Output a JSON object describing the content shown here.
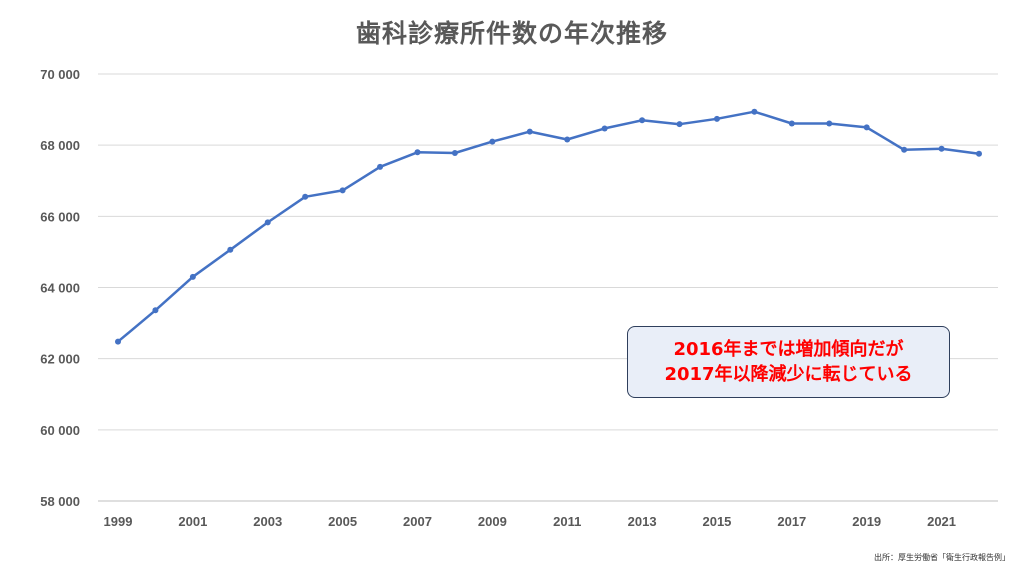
{
  "chart_data": {
    "type": "line",
    "title": "歯科診療所件数の年次推移",
    "x": [
      1999,
      2000,
      2001,
      2002,
      2003,
      2004,
      2005,
      2006,
      2007,
      2008,
      2009,
      2010,
      2011,
      2012,
      2013,
      2014,
      2015,
      2016,
      2017,
      2018,
      2019,
      2020,
      2021,
      2022
    ],
    "series": [
      {
        "values": [
          62480,
          63360,
          64300,
          65060,
          65830,
          66550,
          66730,
          67390,
          67800,
          67780,
          68100,
          68380,
          68160,
          68470,
          68700,
          68590,
          68740,
          68940,
          68610,
          68610,
          68500,
          67870,
          67900,
          67760
        ],
        "color": "#4472c4"
      }
    ],
    "x_tick_labels": [
      "1999",
      "2001",
      "2003",
      "2005",
      "2007",
      "2009",
      "2011",
      "2013",
      "2015",
      "2017",
      "2019",
      "2021"
    ],
    "y_tick_labels": [
      "70 000",
      "68 000",
      "66 000",
      "64 000",
      "62 000",
      "60 000",
      "58 000"
    ],
    "y_ticks": [
      70000,
      68000,
      66000,
      64000,
      62000,
      60000,
      58000
    ],
    "ylim": [
      58000,
      70000
    ],
    "grid": true,
    "legend": "none",
    "annotation": [
      "2016年までは増加傾向だが",
      "2017年以降減少に転じている"
    ],
    "source": "出所：厚生労働省「衛生行政報告例」"
  }
}
